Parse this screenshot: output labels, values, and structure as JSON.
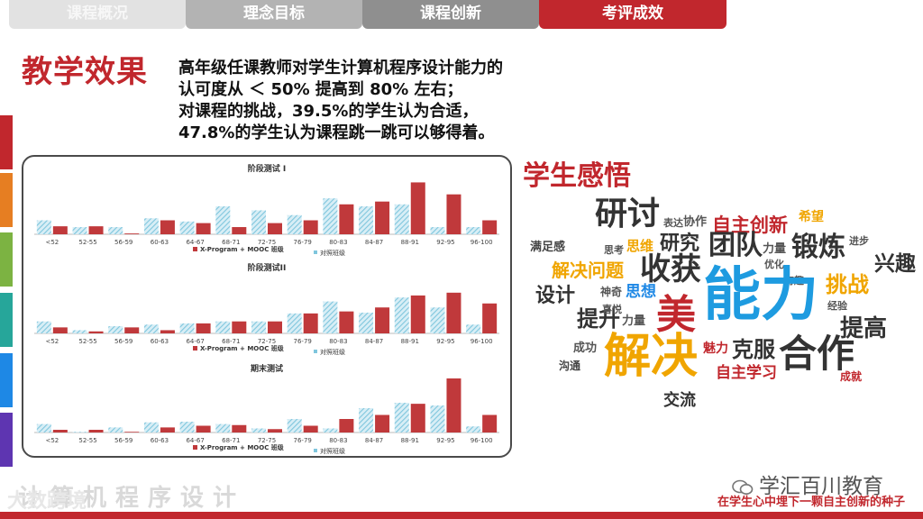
{
  "tabs": [
    {
      "label": "课程概况"
    },
    {
      "label": "理念目标"
    },
    {
      "label": "课程创新"
    },
    {
      "label": "考评成效"
    }
  ],
  "side_colors": [
    "#c1272d",
    "#e67e22",
    "#7cb342",
    "#26a69a",
    "#1e88e5",
    "#5e35b1"
  ],
  "heading": "教学效果",
  "description": [
    "高年级任课教师对学生计算机程序设计能力的",
    "认可度从 ＜ 50% 提高到 80% 左右；",
    "对课程的挑战，39.5%的学生认为合适，",
    "47.8%的学生认为课程跳一跳可以够得着。"
  ],
  "subheading": "学生感悟",
  "word_cloud": [
    {
      "text": "研讨",
      "color": "#333333"
    },
    {
      "text": "表达",
      "color": "#555555"
    },
    {
      "text": "协作",
      "color": "#555555"
    },
    {
      "text": "自主创新",
      "color": "#c1272d"
    },
    {
      "text": "希望",
      "color": "#f0a500"
    },
    {
      "text": "满足感",
      "color": "#444444"
    },
    {
      "text": "思考",
      "color": "#555555"
    },
    {
      "text": "思维",
      "color": "#f0a500"
    },
    {
      "text": "研究",
      "color": "#333333"
    },
    {
      "text": "团队",
      "color": "#333333"
    },
    {
      "text": "力量",
      "color": "#555555"
    },
    {
      "text": "锻炼",
      "color": "#333333"
    },
    {
      "text": "进步",
      "color": "#555555"
    },
    {
      "text": "兴趣",
      "color": "#333333"
    },
    {
      "text": "解决问题",
      "color": "#f0a500"
    },
    {
      "text": "收获",
      "color": "#333333"
    },
    {
      "text": "优化",
      "color": "#555555"
    },
    {
      "text": "有趣",
      "color": "#555555"
    },
    {
      "text": "挑战",
      "color": "#f0a500"
    },
    {
      "text": "设计",
      "color": "#333333"
    },
    {
      "text": "神奇",
      "color": "#555555"
    },
    {
      "text": "思想",
      "color": "#1e88e5"
    },
    {
      "text": "能力",
      "color": "#1e9be0"
    },
    {
      "text": "经验",
      "color": "#555555"
    },
    {
      "text": "提升",
      "color": "#333333"
    },
    {
      "text": "喜悦",
      "color": "#555555"
    },
    {
      "text": "美",
      "color": "#c1272d"
    },
    {
      "text": "力量",
      "color": "#555555"
    },
    {
      "text": "提高",
      "color": "#333333"
    },
    {
      "text": "成功",
      "color": "#555555"
    },
    {
      "text": "魅力",
      "color": "#c1272d"
    },
    {
      "text": "克服",
      "color": "#333333"
    },
    {
      "text": "沟通",
      "color": "#444444"
    },
    {
      "text": "解决",
      "color": "#f0a500"
    },
    {
      "text": "合作",
      "color": "#333333"
    },
    {
      "text": "自主学习",
      "color": "#c1272d"
    },
    {
      "text": "成就",
      "color": "#c1272d"
    },
    {
      "text": "交流",
      "color": "#333333"
    }
  ],
  "brand": "学汇百川教育",
  "slogan": "在学生心中埋下一颗自主创新的种子",
  "watermark": "大数跨境",
  "reflection_text": "计算机程序设计",
  "colors": {
    "accent": "#c1272d",
    "bar_red": "#c0393b",
    "bar_hatch": "#7fc6dd"
  },
  "chart_data": [
    {
      "type": "bar",
      "title": "阶段测试 I",
      "categories": [
        "<52",
        "52-55",
        "56-59",
        "60-63",
        "64-67",
        "68-71",
        "72-75",
        "76-79",
        "80-83",
        "84-87",
        "88-91",
        "92-95",
        "96-100"
      ],
      "series": [
        {
          "name": "对照班级",
          "values": [
            3.5,
            1.8,
            1.8,
            4.0,
            3.2,
            7.0,
            6.0,
            4.8,
            9.0,
            7.0,
            7.5,
            1.8,
            1.8
          ]
        },
        {
          "name": "X-Program + MOOC 班级",
          "values": [
            2.0,
            2.0,
            0.2,
            3.5,
            2.8,
            1.8,
            2.8,
            3.5,
            7.5,
            8.2,
            13.0,
            10.0,
            3.5
          ]
        }
      ],
      "ylim": [
        0,
        14
      ]
    },
    {
      "type": "bar",
      "title": "阶段测试II",
      "categories": [
        "<52",
        "52-55",
        "56-59",
        "60-63",
        "64-67",
        "68-71",
        "72-75",
        "76-79",
        "80-83",
        "84-87",
        "88-91",
        "92-95",
        "96-100"
      ],
      "series": [
        {
          "name": "对照班级",
          "values": [
            3.0,
            0.8,
            1.8,
            2.2,
            2.5,
            3.0,
            3.0,
            5.0,
            8.0,
            5.2,
            9.0,
            6.5,
            2.2
          ]
        },
        {
          "name": "X-Program + MOOC 班级",
          "values": [
            1.5,
            0.5,
            1.5,
            0.8,
            2.5,
            3.0,
            3.0,
            5.0,
            5.5,
            6.5,
            9.5,
            10.2,
            7.5
          ]
        }
      ],
      "ylim": [
        0,
        14
      ]
    },
    {
      "type": "bar",
      "title": "期末测试",
      "categories": [
        "<52",
        "52-55",
        "56-59",
        "60-63",
        "64-67",
        "68-71",
        "72-75",
        "76-79",
        "80-83",
        "84-87",
        "88-91",
        "92-95",
        "96-100"
      ],
      "series": [
        {
          "name": "对照班级",
          "values": [
            2.5,
            0.2,
            1.5,
            3.0,
            3.2,
            2.5,
            1.2,
            4.0,
            1.2,
            7.2,
            8.8,
            8.0,
            1.8
          ]
        },
        {
          "name": "X-Program + MOOC 班级",
          "values": [
            0.8,
            0.8,
            0.2,
            1.5,
            2.0,
            2.2,
            1.0,
            2.0,
            4.0,
            5.2,
            8.5,
            16.0,
            5.2
          ]
        }
      ],
      "ylim": [
        0,
        16
      ]
    }
  ]
}
